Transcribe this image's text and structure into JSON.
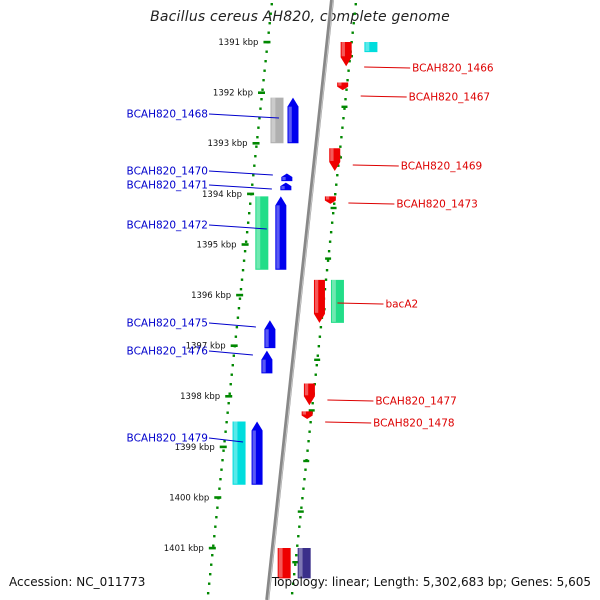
{
  "title": "Bacillus cereus AH820, complete genome",
  "footer": {
    "accession": "Accession: NC_011773",
    "topology": "Topology: linear; Length: 5,302,683 bp; Genes: 5,605"
  },
  "colors": {
    "minus_label": "#0000cc",
    "plus_label": "#dd0000",
    "gene_blue": "#0000ee",
    "gene_red": "#ee0000",
    "gene_green": "#22dd88",
    "gene_cyan": "#00dddd",
    "gene_gray": "#b0b0b0",
    "gene_purple": "#3a2f8a",
    "tick_green": "#008800"
  },
  "ruler": {
    "unit": "kbp",
    "ticks": [
      "1391 kbp",
      "1392 kbp",
      "1393 kbp",
      "1394 kbp",
      "1395 kbp",
      "1396 kbp",
      "1397 kbp",
      "1398 kbp",
      "1399 kbp",
      "1400 kbp",
      "1401 kbp"
    ]
  },
  "minus_labels": [
    "BCAH820_1468",
    "BCAH820_1470",
    "BCAH820_1471",
    "BCAH820_1472",
    "BCAH820_1475",
    "BCAH820_1476",
    "BCAH820_1479"
  ],
  "plus_labels": [
    "BCAH820_1466",
    "BCAH820_1467",
    "BCAH820_1469",
    "BCAH820_1473",
    "bacA2",
    "BCAH820_1477",
    "BCAH820_1478"
  ],
  "genes": [
    {
      "name": "BCAH820_1466",
      "strand": "plus",
      "color": "red",
      "start": 1391.0,
      "end": 1391.48
    },
    {
      "name": "BCAH820_1467",
      "strand": "plus",
      "color": "red",
      "start": 1391.8,
      "end": 1391.95
    },
    {
      "name": "BCAH820_1469",
      "strand": "plus",
      "color": "red",
      "start": 1393.1,
      "end": 1393.55
    },
    {
      "name": "BCAH820_1473",
      "strand": "plus",
      "color": "red",
      "start": 1394.05,
      "end": 1394.2
    },
    {
      "name": "bacA2",
      "strand": "plus",
      "color": "red",
      "start": 1395.7,
      "end": 1396.55
    },
    {
      "name": "BCAH820_1477",
      "strand": "plus",
      "color": "red",
      "start": 1397.75,
      "end": 1398.18
    },
    {
      "name": "BCAH820_1478",
      "strand": "plus",
      "color": "red",
      "start": 1398.3,
      "end": 1398.45
    },
    {
      "name": "BCAH820_1468",
      "strand": "minus",
      "color": "blue",
      "start": 1392.1,
      "end": 1393.0
    },
    {
      "name": "BCAH820_1470",
      "strand": "minus",
      "color": "blue",
      "start": 1393.6,
      "end": 1393.75
    },
    {
      "name": "BCAH820_1471",
      "strand": "minus",
      "color": "blue",
      "start": 1393.78,
      "end": 1393.93
    },
    {
      "name": "BCAH820_1472",
      "strand": "minus",
      "color": "blue",
      "start": 1394.05,
      "end": 1395.5
    },
    {
      "name": "BCAH820_1475",
      "strand": "minus",
      "color": "blue",
      "start": 1396.5,
      "end": 1397.05
    },
    {
      "name": "BCAH820_1476",
      "strand": "minus",
      "color": "blue",
      "start": 1397.1,
      "end": 1397.55
    },
    {
      "name": "BCAH820_1479",
      "strand": "minus",
      "color": "blue",
      "start": 1398.5,
      "end": 1399.75
    }
  ]
}
